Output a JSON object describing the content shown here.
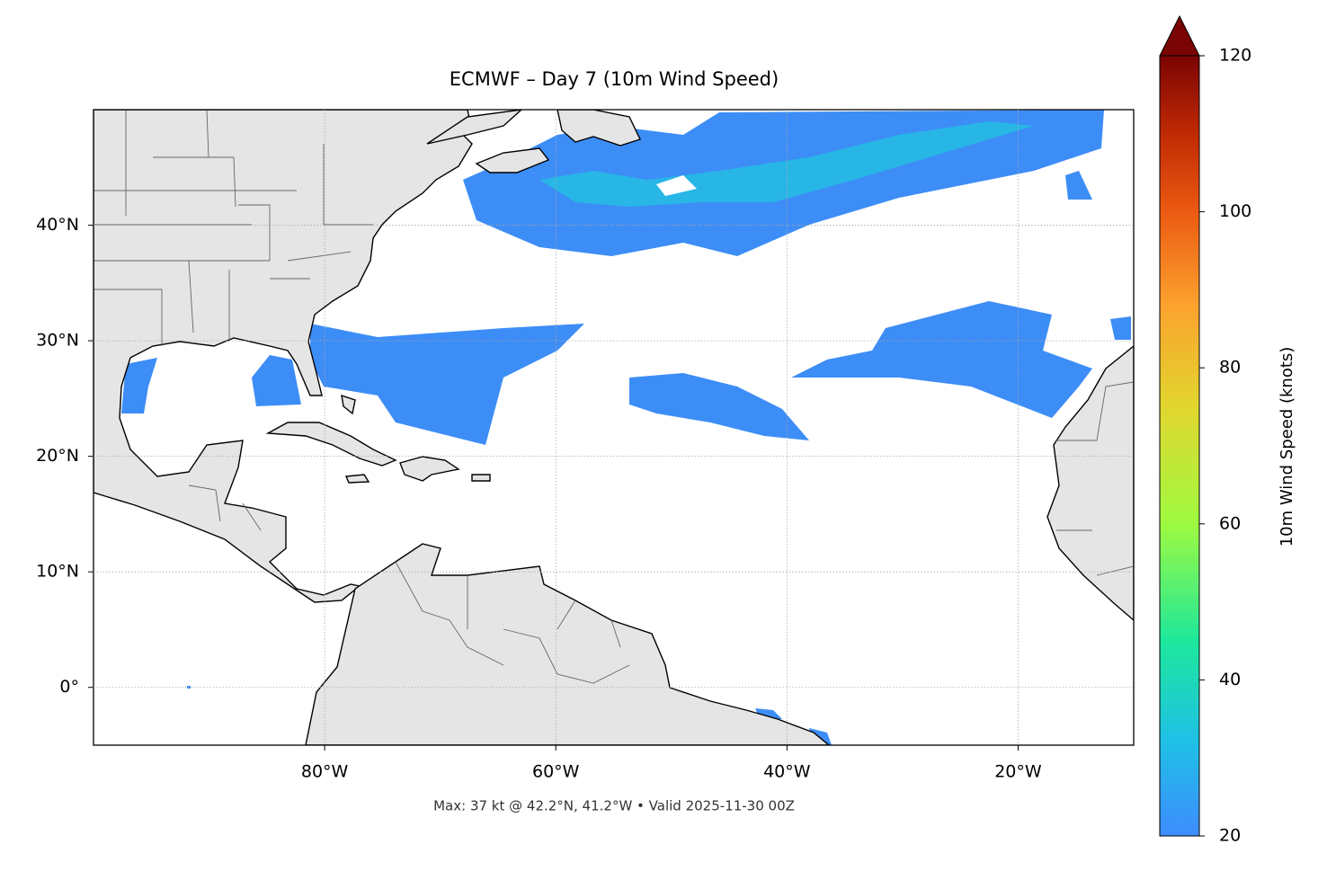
{
  "chart_data": {
    "type": "map",
    "title": "ECMWF – Day 7 (10m Wind Speed)",
    "note": "Max: 37 kt @ 42.2°N, 41.2°W • Valid 2025-11-30 00Z",
    "xlim": [
      -100,
      -10
    ],
    "ylim": [
      -5,
      50
    ],
    "xticks": [
      {
        "value": -80,
        "label": "80°W"
      },
      {
        "value": -60,
        "label": "60°W"
      },
      {
        "value": -40,
        "label": "40°W"
      },
      {
        "value": -20,
        "label": "20°W"
      }
    ],
    "yticks": [
      {
        "value": 0,
        "label": "0°"
      },
      {
        "value": 10,
        "label": "10°N"
      },
      {
        "value": 20,
        "label": "20°N"
      },
      {
        "value": 30,
        "label": "30°N"
      },
      {
        "value": 40,
        "label": "40°N"
      }
    ],
    "grid": true,
    "colorbar": {
      "label": "10m Wind Speed (knots)",
      "ylim": [
        20,
        120
      ],
      "yticks": [
        20,
        40,
        60,
        80,
        100,
        120
      ]
    }
  }
}
